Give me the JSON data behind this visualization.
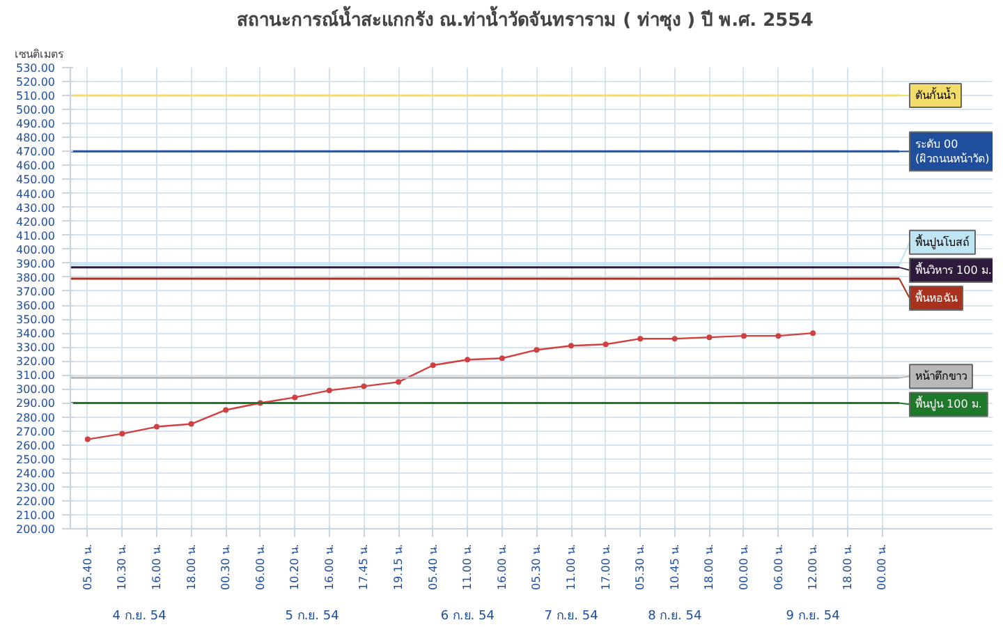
{
  "chart_data": {
    "type": "line",
    "title": "สถานะการณ์น้ำสะแกกรัง  ณ.ท่าน้ำวัดจันทราราม ( ท่าซุง )  ปี พ.ศ. 2554",
    "ylabel": "เซนติเมตร",
    "categories": [
      "05.40 น.",
      "10.30 น.",
      "16.00 น.",
      "18.00 น.",
      "00.30 น.",
      "06.00 น.",
      "10.20 น.",
      "16.00 น.",
      "17.45 น.",
      "19.15 น.",
      "05.40 น.",
      "11.00 น.",
      "16.00 น.",
      "05.30 น.",
      "11.00 น.",
      "17.00 น.",
      "05.30 น.",
      "10.45 น.",
      "18.00 น.",
      "00.00 น.",
      "06.00 น.",
      "12.00 น.",
      "18.00 น.",
      "00.00 น."
    ],
    "series": [
      {
        "color": "#d04040",
        "values": [
          264,
          268,
          273,
          275,
          285,
          290,
          294,
          299,
          302,
          305,
          317,
          321,
          322,
          328,
          331,
          332,
          336,
          336,
          337,
          338,
          338,
          340,
          null,
          null
        ]
      }
    ],
    "annotations": [
      "4 ก.ย. 54",
      "5 ก.ย. 54",
      "6 ก.ย. 54",
      "7 ก.ย. 54",
      "8 ก.ย. 54",
      "9 ก.ย. 54"
    ],
    "ylim": [
      200,
      530
    ],
    "yticks": [
      {
        "value": 200,
        "label": "200.00"
      },
      {
        "value": 210,
        "label": "210.00"
      },
      {
        "value": 220,
        "label": "220.00"
      },
      {
        "value": 230,
        "label": "230.00"
      },
      {
        "value": 240,
        "label": "240.00"
      },
      {
        "value": 250,
        "label": "250.00"
      },
      {
        "value": 260,
        "label": "260.00"
      },
      {
        "value": 270,
        "label": "270.00"
      },
      {
        "value": 280,
        "label": "280.00"
      },
      {
        "value": 290,
        "label": "290.00"
      },
      {
        "value": 300,
        "label": "300.00"
      },
      {
        "value": 310,
        "label": "310.00"
      },
      {
        "value": 320,
        "label": "320.00"
      },
      {
        "value": 330,
        "label": "330.00"
      },
      {
        "value": 340,
        "label": "340.00"
      },
      {
        "value": 350,
        "label": "350.00"
      },
      {
        "value": 360,
        "label": "360.00"
      },
      {
        "value": 370,
        "label": "370.00"
      },
      {
        "value": 380,
        "label": "380.00"
      },
      {
        "value": 390,
        "label": "390.00"
      },
      {
        "value": 400,
        "label": "400.00"
      },
      {
        "value": 410,
        "label": "410.00"
      },
      {
        "value": 420,
        "label": "420.00"
      },
      {
        "value": 430,
        "label": "430.00"
      },
      {
        "value": 440,
        "label": "440.00"
      },
      {
        "value": 450,
        "label": "450.00"
      },
      {
        "value": 460,
        "label": "460.00"
      },
      {
        "value": 470,
        "label": "470.00"
      },
      {
        "value": 480,
        "label": "480.00"
      },
      {
        "value": 490,
        "label": "490.00"
      },
      {
        "value": 500,
        "label": "500.00"
      },
      {
        "value": 510,
        "label": "510.00"
      },
      {
        "value": 520,
        "label": "520.00"
      },
      {
        "value": 530,
        "label": "530.00"
      }
    ],
    "ref_lines": [
      {
        "axis": "y",
        "value": 510,
        "label": "ตันกั้นน้ำ",
        "color": "#f2dc6a"
      },
      {
        "axis": "y",
        "value": 470,
        "label": "ระดับ 00\n(ผิวถนนหน้าวัด)",
        "color": "#1f4e9c"
      },
      {
        "axis": "y",
        "value": 389,
        "label": "พื้นปูนโบสถ์",
        "color": "#bfe4f2"
      },
      {
        "axis": "y",
        "value": 387,
        "label": "พื้นวิหาร 100 ม.",
        "color": "#2e1a3a"
      },
      {
        "axis": "y",
        "value": 379,
        "label": "พื้นหอฉัน",
        "color": "#a8321e"
      },
      {
        "axis": "y",
        "value": 308,
        "label": "หน้าตึกขาว",
        "color": "#b8b8b8"
      },
      {
        "axis": "y",
        "value": 290,
        "label": "พื้นปูน 100 ม.",
        "color": "#1e7a2a"
      }
    ],
    "grid": true,
    "marker": "circle",
    "line_style": "solid"
  }
}
